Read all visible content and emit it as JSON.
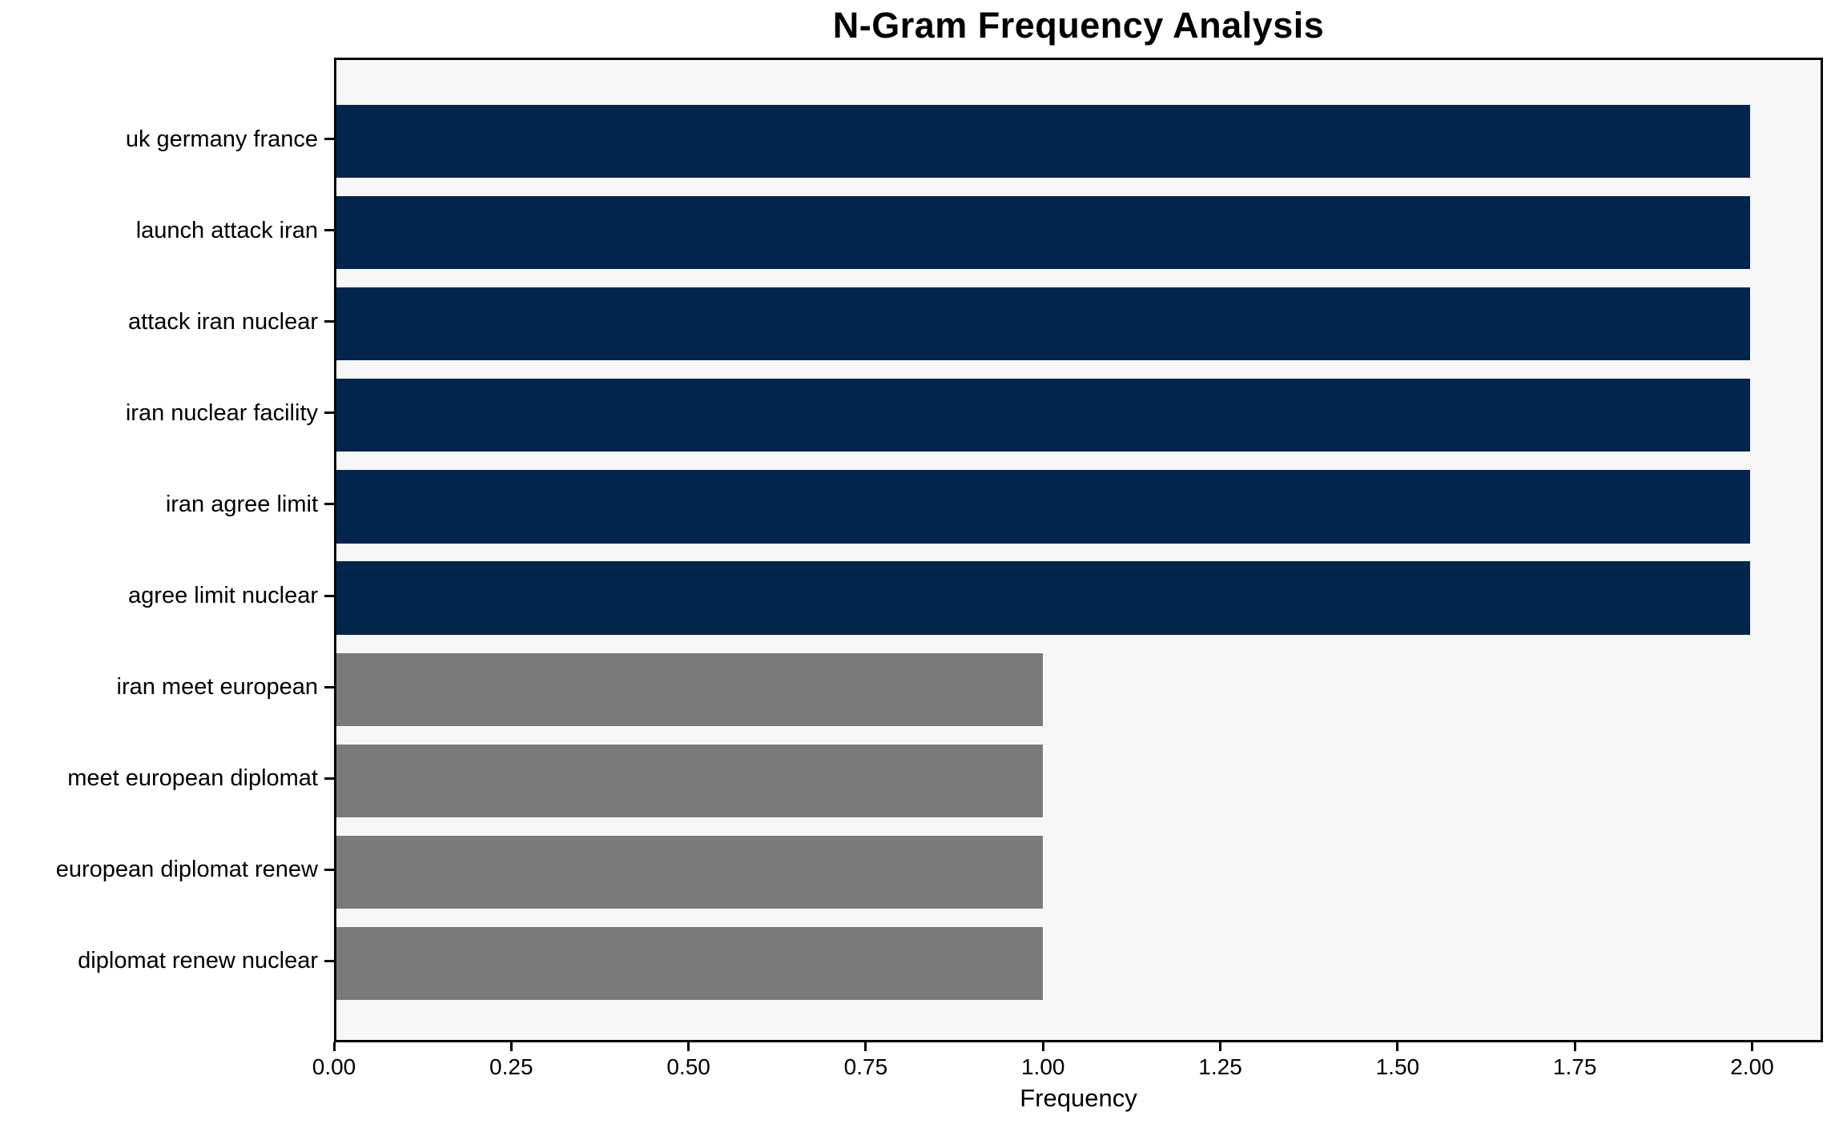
{
  "chart_data": {
    "type": "bar",
    "orientation": "horizontal",
    "title": "N-Gram Frequency Analysis",
    "xlabel": "Frequency",
    "ylabel": "",
    "grid": false,
    "legend": null,
    "xlim": [
      0,
      2.1
    ],
    "categories": [
      "uk germany france",
      "launch attack iran",
      "attack iran nuclear",
      "iran nuclear facility",
      "iran agree limit",
      "agree limit nuclear",
      "iran meet european",
      "meet european diplomat",
      "european diplomat renew",
      "diplomat renew nuclear"
    ],
    "values": [
      2,
      2,
      2,
      2,
      2,
      2,
      1,
      1,
      1,
      1
    ],
    "bar_colors": [
      "#02254e",
      "#02254e",
      "#02254e",
      "#02254e",
      "#02254e",
      "#02254e",
      "#7a7a78",
      "#7a7a78",
      "#7a7a78",
      "#7a7a78"
    ],
    "x_ticks": [
      {
        "value": 0.0,
        "label": "0.00"
      },
      {
        "value": 0.25,
        "label": "0.25"
      },
      {
        "value": 0.5,
        "label": "0.50"
      },
      {
        "value": 0.75,
        "label": "0.75"
      },
      {
        "value": 1.0,
        "label": "1.00"
      },
      {
        "value": 1.25,
        "label": "1.25"
      },
      {
        "value": 1.5,
        "label": "1.50"
      },
      {
        "value": 1.75,
        "label": "1.75"
      },
      {
        "value": 2.0,
        "label": "2.00"
      }
    ],
    "colors": {
      "high_freq_bar": "#02254e",
      "low_freq_bar": "#7a7a78",
      "plot_background": "#f7f7f7",
      "figure_background": "#ffffff",
      "axis": "#000000"
    }
  }
}
